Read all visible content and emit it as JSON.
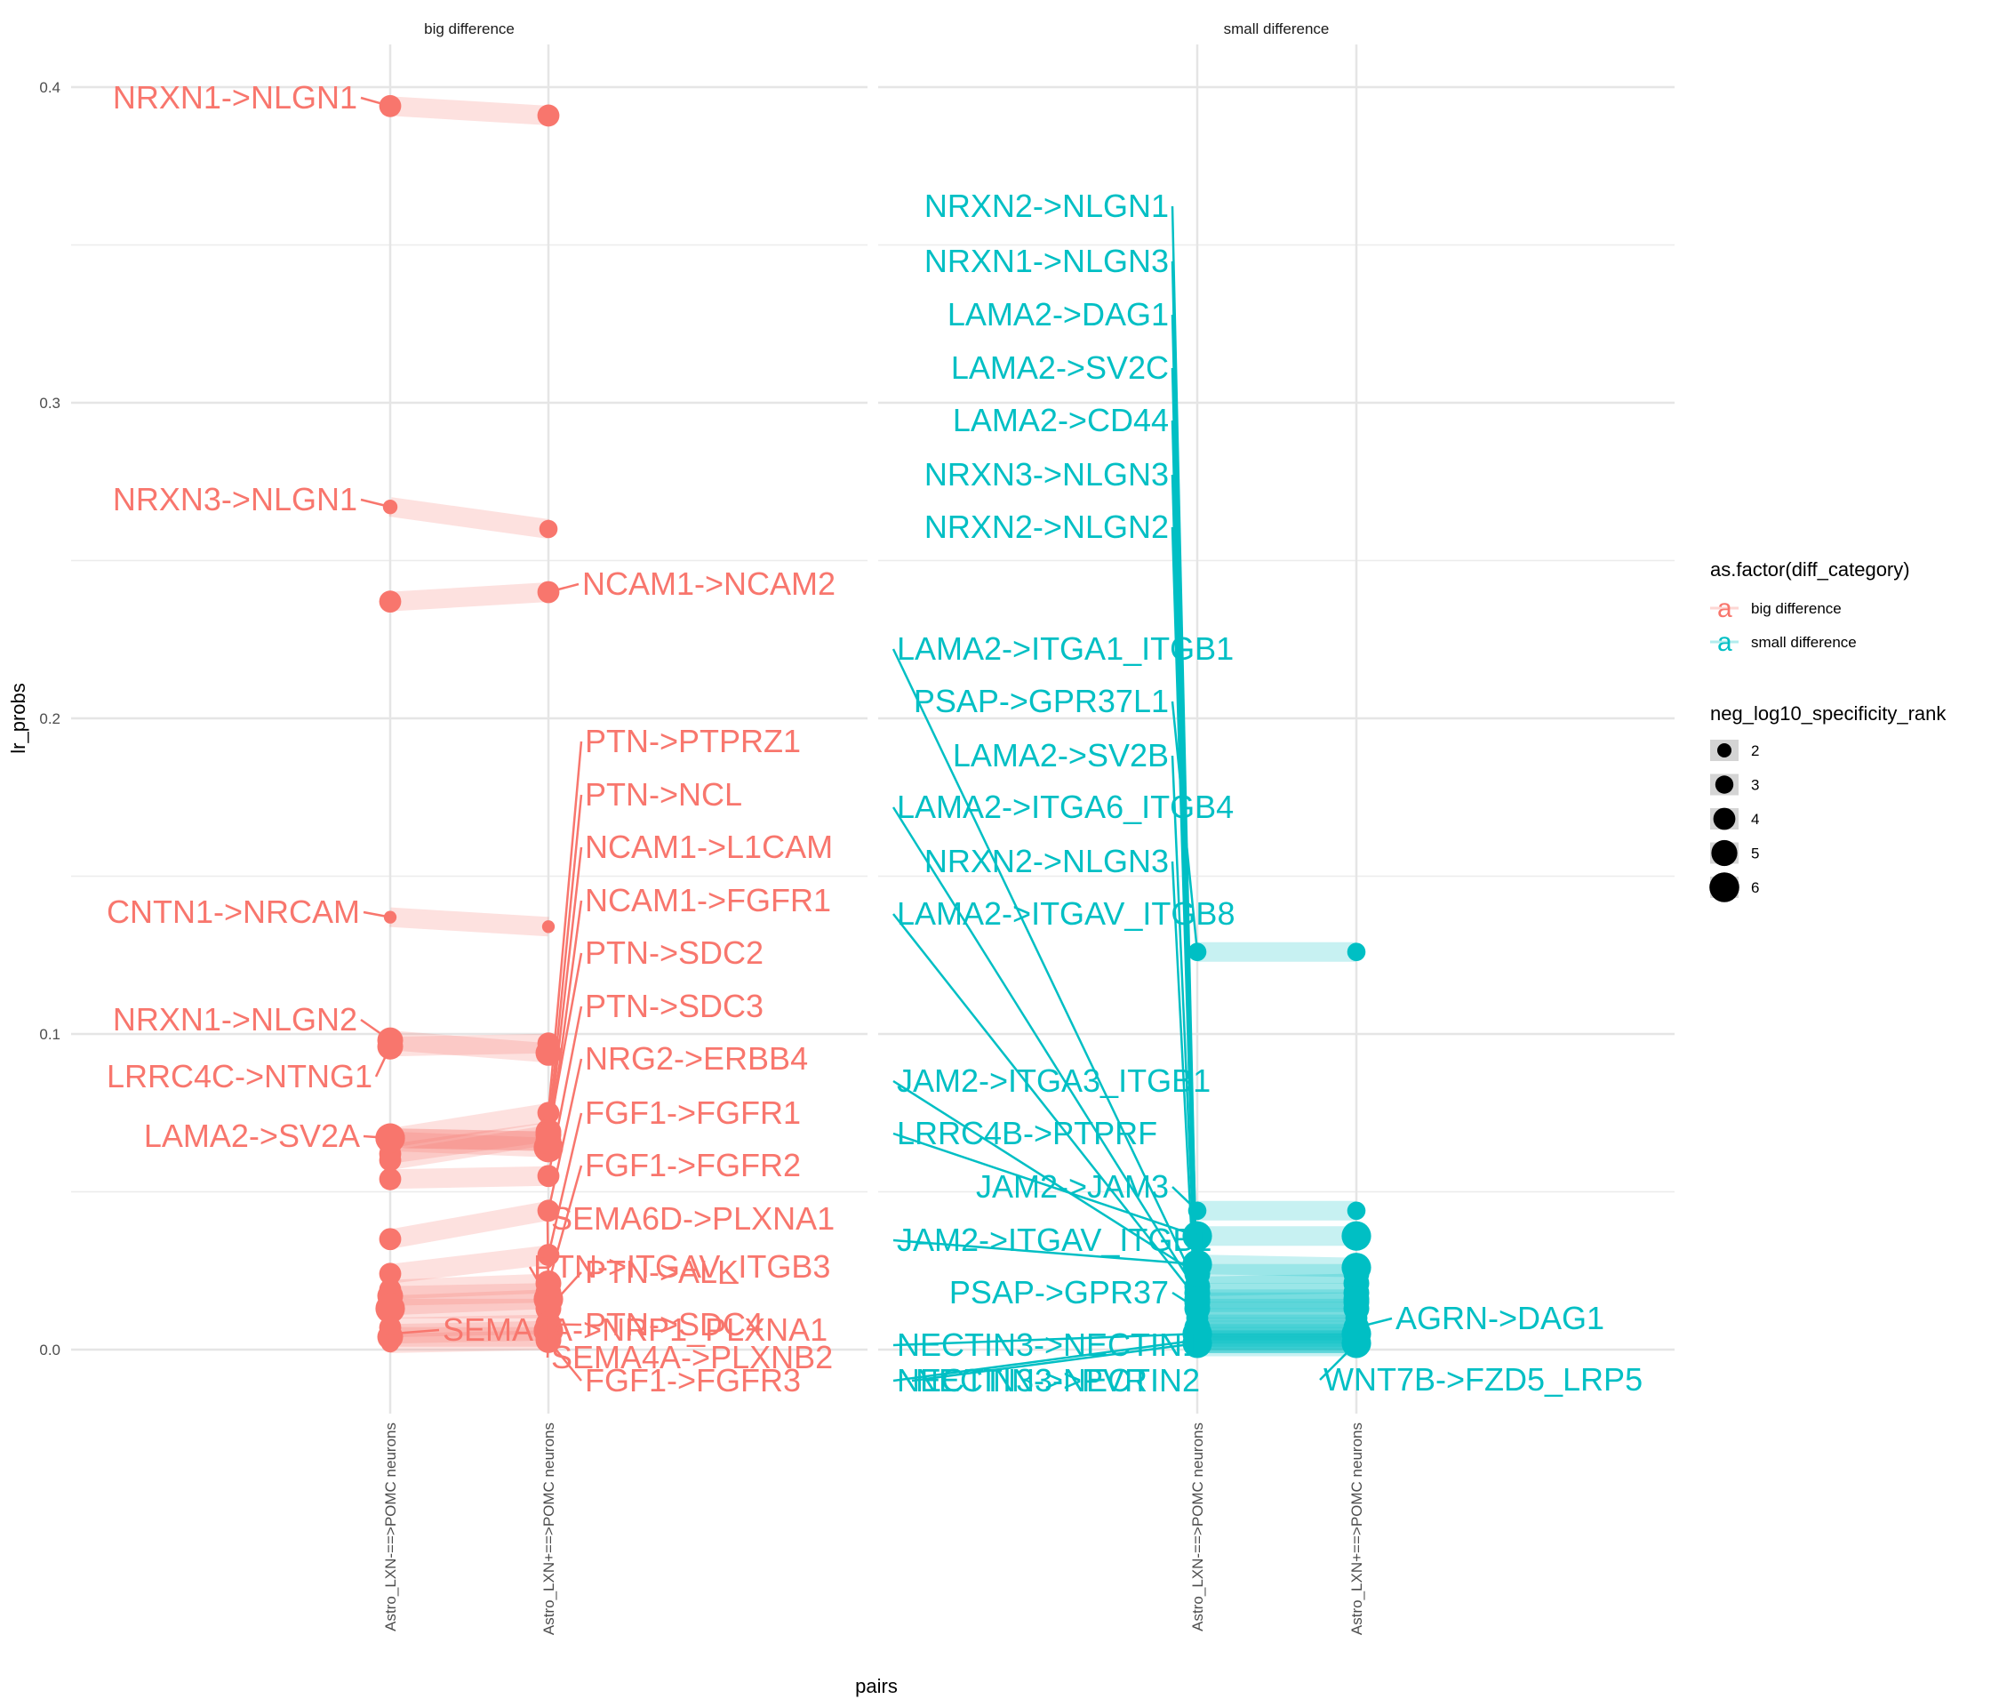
{
  "chart_data": {
    "type": "line",
    "subtype": "faceted slope chart with point size",
    "title": "",
    "xlabel": "pairs",
    "ylabel": "lr_probs",
    "ylim": [
      -0.023,
      0.425
    ],
    "yticks": [
      0.0,
      0.1,
      0.2,
      0.3,
      0.4
    ],
    "ytick_labels": [
      "0.0",
      "0.1",
      "0.2",
      "0.3",
      "0.4"
    ],
    "grid": true,
    "categories": [
      "Astro_LXN-==>POMC neurons",
      "Astro_LXN+==>POMC neurons"
    ],
    "colors": {
      "big difference": "#F8766D",
      "small difference": "#00BFC4"
    },
    "facets": [
      {
        "name": "big difference",
        "series": [
          {
            "name": "NRXN1->NLGN1",
            "values": [
              0.394,
              0.391
            ],
            "size": [
              4,
              4
            ],
            "label_side": "left"
          },
          {
            "name": "NRXN3->NLGN1",
            "values": [
              0.267,
              0.26
            ],
            "size": [
              2,
              3
            ],
            "label_side": "left"
          },
          {
            "name": "NCAM1->NCAM2",
            "values": [
              0.237,
              0.24
            ],
            "size": [
              4,
              4
            ],
            "label_side": "right"
          },
          {
            "name": "CNTN1->NRCAM",
            "values": [
              0.137,
              0.134
            ],
            "size": [
              1.5,
              1.5
            ],
            "label_side": "left"
          },
          {
            "name": "NRXN1->NLGN2",
            "values": [
              0.098,
              0.094
            ],
            "size": [
              5,
              5
            ],
            "label_side": "left"
          },
          {
            "name": "LRRC4C->NTNG1",
            "values": [
              0.096,
              0.097
            ],
            "size": [
              5,
              4
            ],
            "label_side": "left"
          },
          {
            "name": "PTN->PTPRZ1",
            "values": [
              0.067,
              0.075
            ],
            "size": [
              6,
              4
            ],
            "label_side": "right"
          },
          {
            "name": "PTN->NCL",
            "values": [
              0.062,
              0.069
            ],
            "size": [
              4,
              5
            ],
            "label_side": "right"
          },
          {
            "name": "NCAM1->L1CAM",
            "values": [
              0.067,
              0.066
            ],
            "size": [
              5,
              5
            ],
            "label_side": "right"
          },
          {
            "name": "NCAM1->FGFR1",
            "values": [
              0.066,
              0.064
            ],
            "size": [
              5,
              6
            ],
            "label_side": "right"
          },
          {
            "name": "PTN->SDC2",
            "values": [
              0.06,
              0.068
            ],
            "size": [
              4,
              5
            ],
            "label_side": "right"
          },
          {
            "name": "PTN->SDC3",
            "values": [
              0.054,
              0.055
            ],
            "size": [
              4,
              4
            ],
            "label_side": "right"
          },
          {
            "name": "LAMA2->SV2A",
            "values": [
              0.067,
              0.066
            ],
            "size": [
              6,
              5
            ],
            "label_side": "left"
          },
          {
            "name": "NRG2->ERBB4",
            "values": [
              0.035,
              0.044
            ],
            "size": [
              4,
              4
            ],
            "label_side": "right"
          },
          {
            "name": "FGF1->FGFR1",
            "values": [
              0.024,
              0.03
            ],
            "size": [
              4,
              4
            ],
            "label_side": "right"
          },
          {
            "name": "FGF1->FGFR2",
            "values": [
              0.019,
              0.021
            ],
            "size": [
              4,
              5
            ],
            "label_side": "right"
          },
          {
            "name": "SEMA6D->PLXNA1",
            "values": [
              0.017,
              0.018
            ],
            "size": [
              5,
              5
            ],
            "label_side": "right"
          },
          {
            "name": "PTN->ITGAV_ITGB3",
            "values": [
              0.014,
              0.016
            ],
            "size": [
              5,
              6
            ],
            "label_side": "right"
          },
          {
            "name": "PTN->ALK",
            "values": [
              0.013,
              0.013
            ],
            "size": [
              6,
              5
            ],
            "label_side": "right"
          },
          {
            "name": "PTN->SDC4",
            "values": [
              0.007,
              0.008
            ],
            "size": [
              4,
              5
            ],
            "label_side": "right"
          },
          {
            "name": "SEMA4A->NRP1_PLXNA1",
            "values": [
              0.005,
              0.006
            ],
            "size": [
              4,
              6
            ],
            "label_side": "left"
          },
          {
            "name": "SEMA4A->PLXNB2",
            "values": [
              0.004,
              0.004
            ],
            "size": [
              5,
              5
            ],
            "label_side": "right"
          },
          {
            "name": "FGF1->FGFR3",
            "values": [
              0.002,
              0.003
            ],
            "size": [
              3,
              5
            ],
            "label_side": "right"
          }
        ]
      },
      {
        "name": "small difference",
        "series": [
          {
            "name": "NRXN2->NLGN1",
            "values": [
              0.012,
              0.012
            ],
            "size": [
              4,
              4
            ],
            "label_side": "left"
          },
          {
            "name": "NRXN1->NLGN3",
            "values": [
              0.01,
              0.01
            ],
            "size": [
              4,
              4
            ],
            "label_side": "left"
          },
          {
            "name": "LAMA2->DAG1",
            "values": [
              0.015,
              0.015
            ],
            "size": [
              5,
              5
            ],
            "label_side": "left"
          },
          {
            "name": "LAMA2->SV2C",
            "values": [
              0.006,
              0.006
            ],
            "size": [
              4,
              4
            ],
            "label_side": "left"
          },
          {
            "name": "LAMA2->CD44",
            "values": [
              0.004,
              0.004
            ],
            "size": [
              4,
              4
            ],
            "label_side": "left"
          },
          {
            "name": "NRXN3->NLGN3",
            "values": [
              0.003,
              0.003
            ],
            "size": [
              4,
              4
            ],
            "label_side": "left"
          },
          {
            "name": "NRXN2->NLGN2",
            "values": [
              0.002,
              0.002
            ],
            "size": [
              4,
              4
            ],
            "label_side": "left"
          },
          {
            "name": "LAMA2->ITGA1_ITGB1",
            "values": [
              0.02,
              0.021
            ],
            "size": [
              5,
              5
            ],
            "label_side": "left"
          },
          {
            "name": "PSAP->GPR37L1",
            "values": [
              0.126,
              0.126
            ],
            "size": [
              3,
              3
            ],
            "label_side": "left"
          },
          {
            "name": "LAMA2->SV2B",
            "values": [
              0.008,
              0.008
            ],
            "size": [
              4,
              4
            ],
            "label_side": "left"
          },
          {
            "name": "LAMA2->ITGA6_ITGB4",
            "values": [
              0.018,
              0.018
            ],
            "size": [
              5,
              5
            ],
            "label_side": "left"
          },
          {
            "name": "NRXN2->NLGN3",
            "values": [
              0.001,
              0.001
            ],
            "size": [
              4,
              4
            ],
            "label_side": "left"
          },
          {
            "name": "LAMA2->ITGAV_ITGB8",
            "values": [
              0.016,
              0.016
            ],
            "size": [
              5,
              5
            ],
            "label_side": "left"
          },
          {
            "name": "JAM2->ITGA3_ITGB1",
            "values": [
              0.024,
              0.024
            ],
            "size": [
              5,
              5
            ],
            "label_side": "left"
          },
          {
            "name": "LRRC4B->PTPRF",
            "values": [
              0.036,
              0.036
            ],
            "size": [
              6,
              6
            ],
            "label_side": "left"
          },
          {
            "name": "JAM2->JAM3",
            "values": [
              0.044,
              0.044
            ],
            "size": [
              3,
              3
            ],
            "label_side": "left"
          },
          {
            "name": "JAM2->ITGAV_ITGB1",
            "values": [
              0.027,
              0.026
            ],
            "size": [
              6,
              6
            ],
            "label_side": "left"
          },
          {
            "name": "PSAP->GPR37",
            "values": [
              0.013,
              0.013
            ],
            "size": [
              5,
              5
            ],
            "label_side": "left"
          },
          {
            "name": "NECTIN3->NECTIN1",
            "values": [
              0.005,
              0.005
            ],
            "size": [
              6,
              6
            ],
            "label_side": "left"
          },
          {
            "name": "NECTIN3->NECTIN2",
            "values": [
              0.003,
              0.003
            ],
            "size": [
              5,
              5
            ],
            "label_side": "left"
          },
          {
            "name": "NECTIN3->PVR",
            "values": [
              0.002,
              0.002
            ],
            "size": [
              5,
              5
            ],
            "label_side": "left"
          },
          {
            "name": "AGRN->DAG1",
            "values": [
              0.007,
              0.007
            ],
            "size": [
              5,
              5
            ],
            "label_side": "right"
          },
          {
            "name": "WNT7B->FZD5_LRP5",
            "values": [
              0.002,
              0.002
            ],
            "size": [
              6,
              6
            ],
            "label_side": "right"
          }
        ]
      }
    ],
    "legend": {
      "placement": "right",
      "color_title": "as.factor(diff_category)",
      "color_entries": [
        "big difference",
        "small difference"
      ],
      "color_key_glyph": "a",
      "size_title": "neg_log10_specificity_rank",
      "size_entries": [
        "2",
        "3",
        "4",
        "5",
        "6"
      ]
    }
  }
}
